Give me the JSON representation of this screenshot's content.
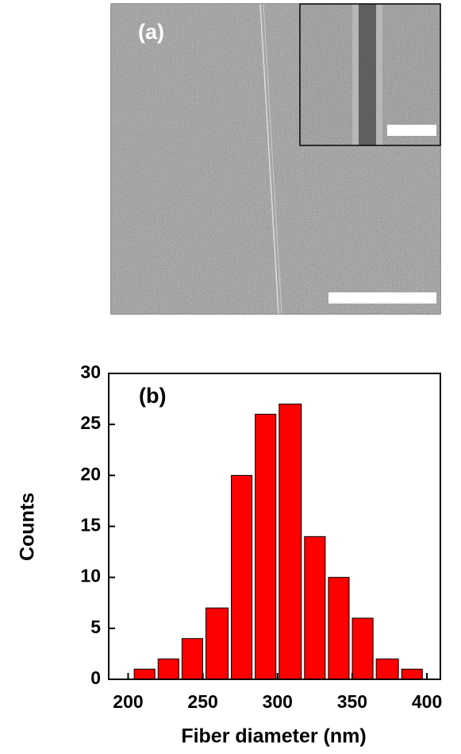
{
  "image": {
    "label": "(a)"
  },
  "chart_data": {
    "type": "histogram",
    "annotation": "(b)",
    "xlabel": "Fiber diameter (nm)",
    "ylabel": "Counts",
    "bins": [
      203,
      219,
      235,
      251,
      268,
      284,
      300,
      317,
      333,
      349,
      365,
      382,
      398
    ],
    "counts": [
      1,
      2,
      4,
      7,
      20,
      26,
      27,
      14,
      10,
      6,
      2,
      1
    ],
    "color": "#ff0000",
    "xlim": [
      187,
      409
    ],
    "xticks": [
      200,
      250,
      300,
      350,
      400
    ],
    "ylim": [
      0,
      30
    ],
    "yticks": [
      0,
      5,
      10,
      15,
      20,
      25,
      30
    ]
  }
}
